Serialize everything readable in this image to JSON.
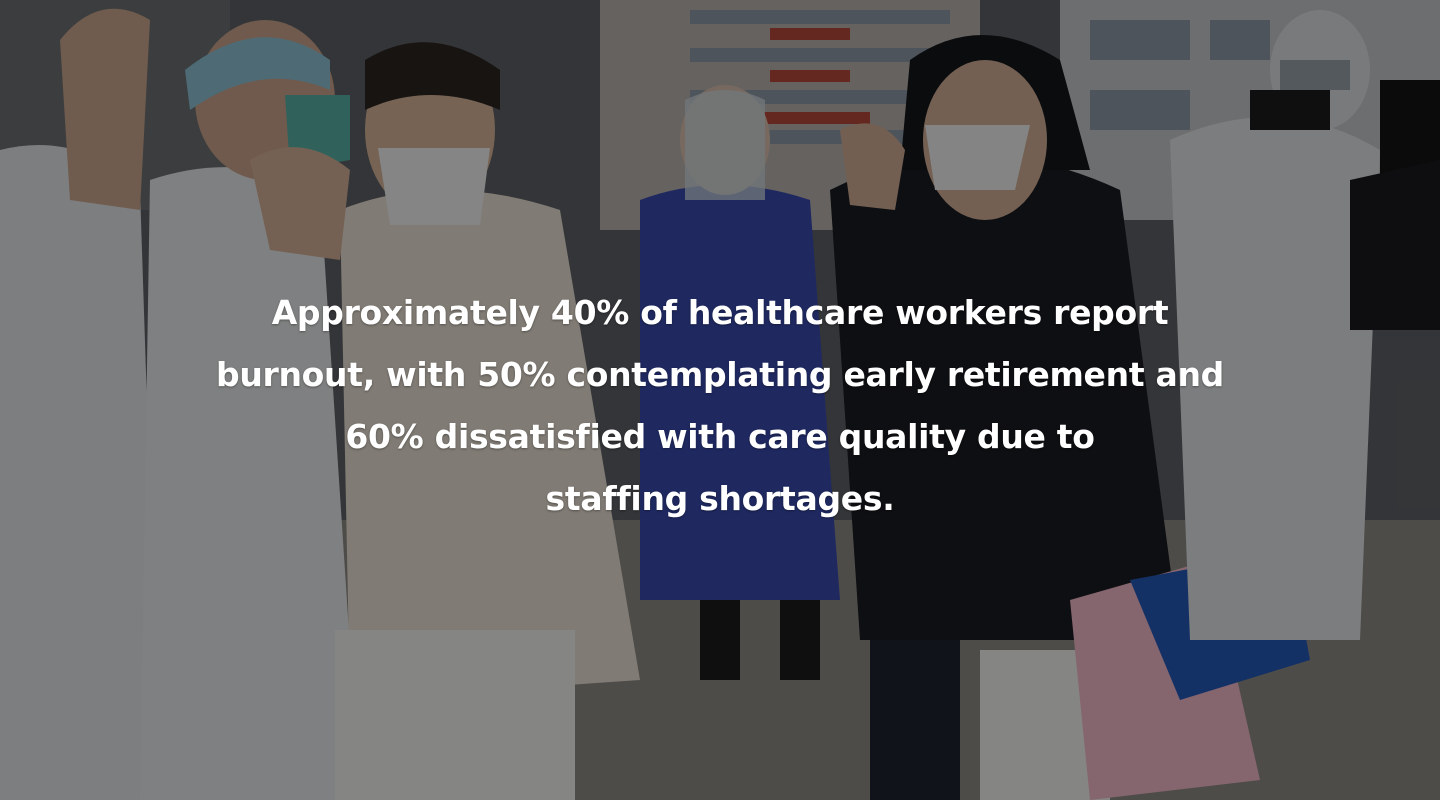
{
  "caption": {
    "line1": "Approximately 40% of healthcare workers report",
    "line2": "burnout, with 50% contemplating early retirement and",
    "line3": "60% dissatisfied with care quality due to",
    "line4": "staffing shortages."
  },
  "colors": {
    "overlay": "#000000",
    "text": "#ffffff",
    "blue_coat": "#3a4bb0",
    "white_suit": "#d8dadc",
    "dark_jacket": "#1b1c22"
  },
  "icons": [
    "medical-workers-photo"
  ]
}
